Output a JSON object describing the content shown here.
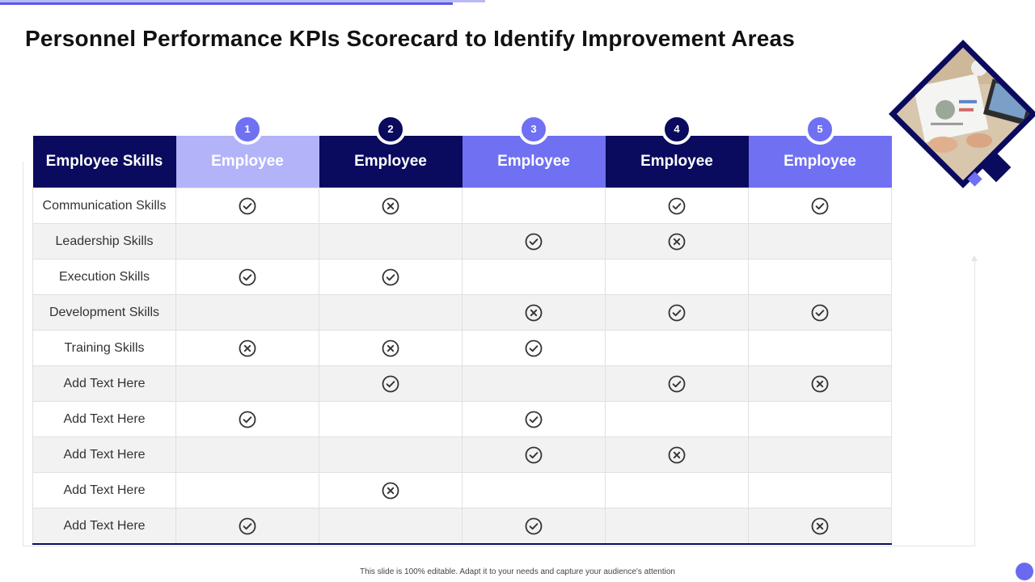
{
  "title": "Personnel Performance KPIs Scorecard to Identify Improvement Areas",
  "table": {
    "first_header": "Employee Skills",
    "columns": [
      {
        "number": "1",
        "label": "Employee"
      },
      {
        "number": "2",
        "label": "Employee"
      },
      {
        "number": "3",
        "label": "Employee"
      },
      {
        "number": "4",
        "label": "Employee"
      },
      {
        "number": "5",
        "label": "Employee"
      }
    ],
    "rows": [
      {
        "skill": "Communication Skills",
        "marks": [
          "check",
          "cross",
          "",
          "check",
          "check"
        ]
      },
      {
        "skill": "Leadership Skills",
        "marks": [
          "",
          "",
          "check",
          "cross",
          ""
        ]
      },
      {
        "skill": "Execution Skills",
        "marks": [
          "check",
          "check",
          "",
          "",
          ""
        ]
      },
      {
        "skill": "Development Skills",
        "marks": [
          "",
          "",
          "cross",
          "check",
          "check"
        ]
      },
      {
        "skill": "Training Skills",
        "marks": [
          "cross",
          "cross",
          "check",
          "",
          ""
        ]
      },
      {
        "skill": "Add Text Here",
        "marks": [
          "",
          "check",
          "",
          "check",
          "cross"
        ]
      },
      {
        "skill": "Add Text Here",
        "marks": [
          "check",
          "",
          "check",
          "",
          ""
        ]
      },
      {
        "skill": "Add Text Here",
        "marks": [
          "",
          "",
          "check",
          "cross",
          ""
        ]
      },
      {
        "skill": "Add Text Here",
        "marks": [
          "",
          "cross",
          "",
          "",
          ""
        ]
      },
      {
        "skill": "Add Text Here",
        "marks": [
          "check",
          "",
          "check",
          "",
          "cross"
        ]
      }
    ]
  },
  "icons": {
    "check": "check-circle-icon",
    "cross": "x-circle-icon"
  },
  "colors": {
    "dark": "#0a0a5e",
    "medium": "#7070f2",
    "light": "#b3b3fa",
    "mark": "#333333"
  },
  "footer": "This slide is 100% editable. Adapt it to your needs and capture your audience's attention"
}
